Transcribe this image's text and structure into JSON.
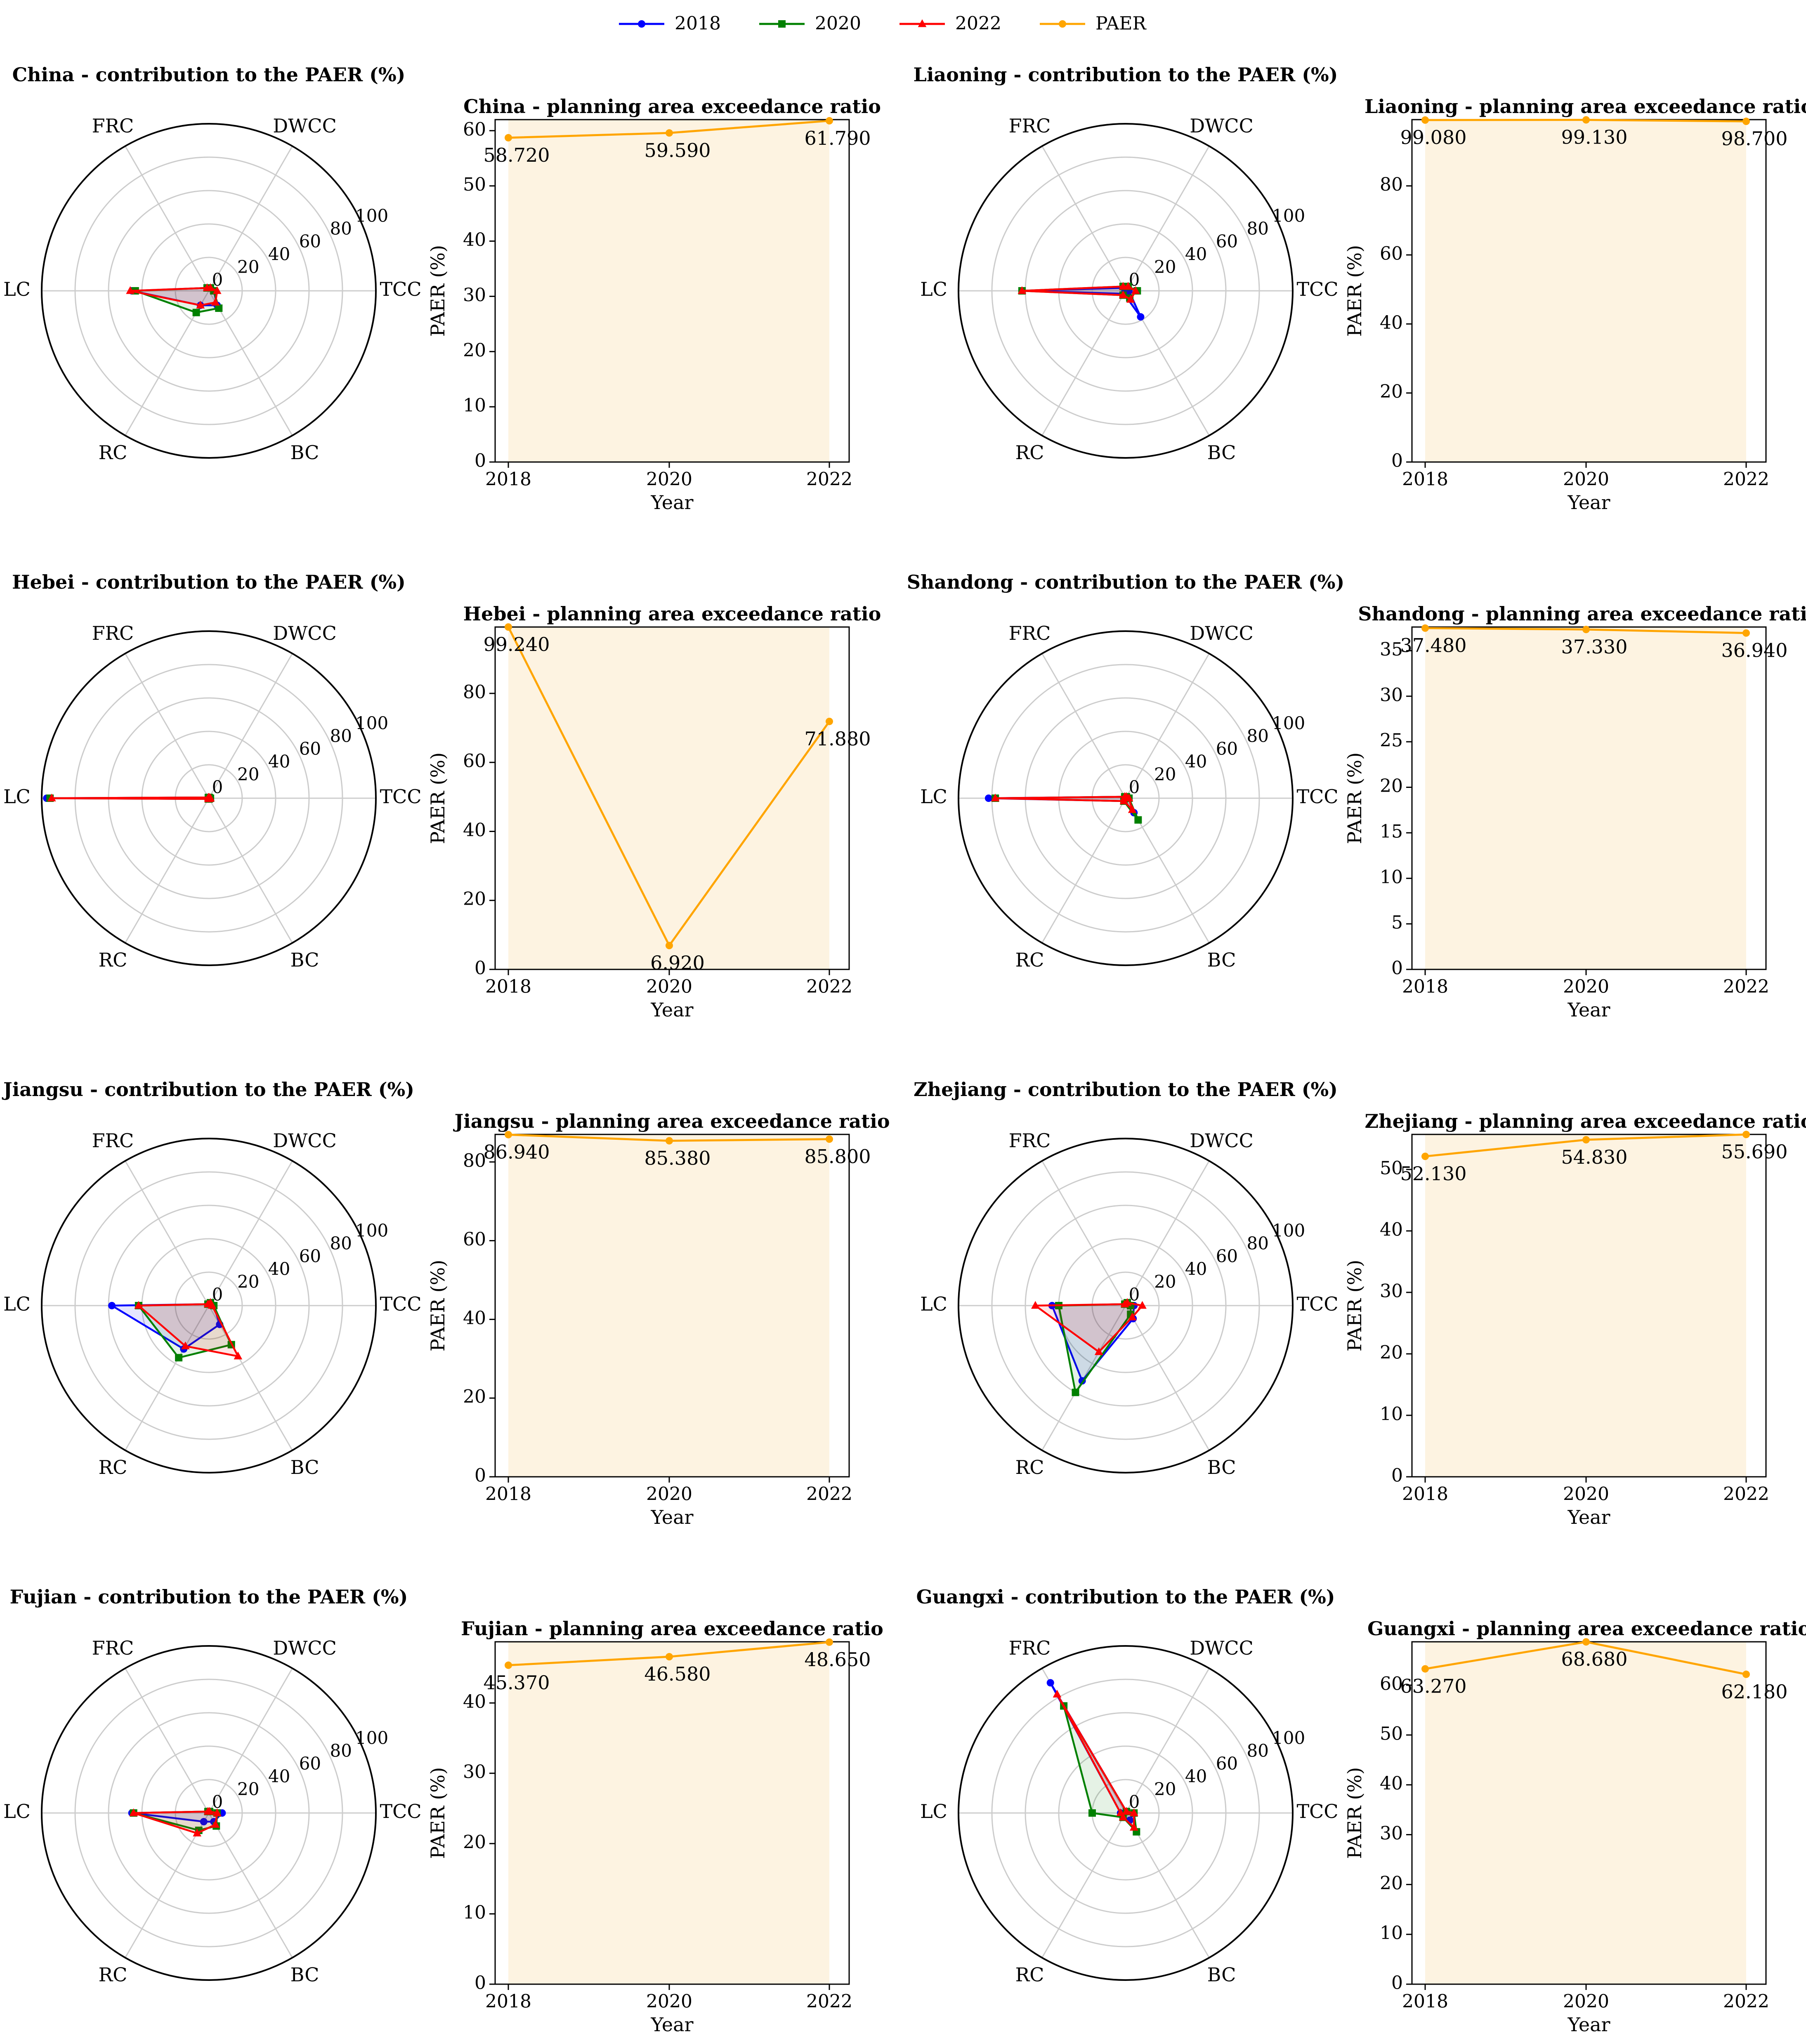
{
  "figure": {
    "legend": [
      {
        "name": "2018",
        "color": "#0000ff",
        "marker": "circle"
      },
      {
        "name": "2020",
        "color": "#008000",
        "marker": "square"
      },
      {
        "name": "2022",
        "color": "#ff0000",
        "marker": "triangle"
      },
      {
        "name": "PAER",
        "color": "#ffa500",
        "marker": "circle"
      }
    ]
  },
  "chart_data": [
    {
      "type": "radar",
      "region": "China",
      "title": "China - contribution to the PAER (%)",
      "axes": [
        "TCC",
        "DWCC",
        "FRC",
        "LC",
        "RC",
        "BC"
      ],
      "rticks": [
        0,
        20,
        40,
        60,
        80,
        100
      ],
      "rlim": [
        0,
        100
      ],
      "series": [
        {
          "name": "2018",
          "values": [
            3,
            2,
            2,
            46,
            10,
            10
          ]
        },
        {
          "name": "2020",
          "values": [
            3,
            2,
            2,
            44,
            15,
            12
          ]
        },
        {
          "name": "2022",
          "values": [
            5,
            2,
            2,
            47,
            10,
            8
          ]
        }
      ]
    },
    {
      "type": "line",
      "region": "China",
      "title": "China - planning area exceedance ratio",
      "categories": [
        "2018",
        "2020",
        "2022"
      ],
      "values": [
        58.72,
        59.59,
        61.79
      ],
      "labels": [
        "58.720",
        "59.590",
        "61.790"
      ],
      "ylim": [
        0,
        62
      ],
      "yticks": [
        0,
        10,
        20,
        30,
        40,
        50,
        60
      ],
      "xlabel": "Year",
      "ylabel": "PAER (%)"
    },
    {
      "type": "radar",
      "region": "Liaoning",
      "title": "Liaoning - contribution to the PAER (%)",
      "axes": [
        "TCC",
        "DWCC",
        "FRC",
        "LC",
        "RC",
        "BC"
      ],
      "rticks": [
        0,
        20,
        40,
        60,
        80,
        100
      ],
      "rlim": [
        0,
        100
      ],
      "series": [
        {
          "name": "2018",
          "values": [
            2,
            2,
            2,
            62,
            2,
            18
          ]
        },
        {
          "name": "2020",
          "values": [
            7,
            3,
            3,
            62,
            3,
            5
          ]
        },
        {
          "name": "2022",
          "values": [
            6,
            3,
            3,
            62,
            3,
            6
          ]
        }
      ]
    },
    {
      "type": "line",
      "region": "Liaoning",
      "title": "Liaoning - planning area exceedance ratio",
      "categories": [
        "2018",
        "2020",
        "2022"
      ],
      "values": [
        99.08,
        99.13,
        98.7
      ],
      "labels": [
        "99.080",
        "99.130",
        "98.700"
      ],
      "ylim": [
        0,
        99.2
      ],
      "yticks": [
        0,
        20,
        40,
        60,
        80
      ],
      "xlabel": "Year",
      "ylabel": "PAER (%)"
    },
    {
      "type": "radar",
      "region": "Hebei",
      "title": "Hebei - contribution to the PAER (%)",
      "axes": [
        "TCC",
        "DWCC",
        "FRC",
        "LC",
        "RC",
        "BC"
      ],
      "rticks": [
        0,
        20,
        40,
        60,
        80,
        100
      ],
      "rlim": [
        0,
        100
      ],
      "series": [
        {
          "name": "2018",
          "values": [
            1,
            0.5,
            0.5,
            97,
            0.5,
            0.5
          ]
        },
        {
          "name": "2020",
          "values": [
            1,
            0.5,
            0.5,
            95,
            0.5,
            0.5
          ]
        },
        {
          "name": "2022",
          "values": [
            1,
            0.5,
            0.5,
            94,
            0.5,
            0.5
          ]
        }
      ]
    },
    {
      "type": "line",
      "region": "Hebei",
      "title": "Hebei - planning area exceedance ratio",
      "categories": [
        "2018",
        "2020",
        "2022"
      ],
      "values": [
        99.24,
        6.92,
        71.88
      ],
      "labels": [
        "99.240",
        "6.920",
        "71.880"
      ],
      "ylim": [
        0,
        99.24
      ],
      "yticks": [
        0,
        20,
        40,
        60,
        80
      ],
      "xlabel": "Year",
      "ylabel": "PAER (%)"
    },
    {
      "type": "radar",
      "region": "Shandong",
      "title": "Shandong - contribution to the PAER (%)",
      "axes": [
        "TCC",
        "DWCC",
        "FRC",
        "LC",
        "RC",
        "BC"
      ],
      "rticks": [
        0,
        20,
        40,
        60,
        80,
        100
      ],
      "rlim": [
        0,
        100
      ],
      "series": [
        {
          "name": "2018",
          "values": [
            2,
            1,
            1,
            82,
            2,
            10
          ]
        },
        {
          "name": "2020",
          "values": [
            2,
            1,
            1,
            78,
            2,
            15
          ]
        },
        {
          "name": "2022",
          "values": [
            2,
            1,
            1,
            78,
            2,
            8
          ]
        }
      ]
    },
    {
      "type": "line",
      "region": "Shandong",
      "title": "Shandong - planning area exceedance ratio",
      "categories": [
        "2018",
        "2020",
        "2022"
      ],
      "values": [
        37.48,
        37.33,
        36.94
      ],
      "labels": [
        "37.480",
        "37.330",
        "36.940"
      ],
      "ylim": [
        0,
        37.6
      ],
      "yticks": [
        0,
        5,
        10,
        15,
        20,
        25,
        30,
        35
      ],
      "xlabel": "Year",
      "ylabel": "PAER (%)"
    },
    {
      "type": "radar",
      "region": "Jiangsu",
      "title": "Jiangsu - contribution to the PAER (%)",
      "axes": [
        "TCC",
        "DWCC",
        "FRC",
        "LC",
        "RC",
        "BC"
      ],
      "rticks": [
        0,
        20,
        40,
        60,
        80,
        100
      ],
      "rlim": [
        0,
        100
      ],
      "series": [
        {
          "name": "2018",
          "values": [
            3,
            2,
            1,
            58,
            30,
            13
          ]
        },
        {
          "name": "2020",
          "values": [
            3,
            2,
            1,
            42,
            36,
            27
          ]
        },
        {
          "name": "2022",
          "values": [
            2,
            2,
            1,
            42,
            28,
            35
          ]
        }
      ]
    },
    {
      "type": "line",
      "region": "Jiangsu",
      "title": "Jiangsu - planning area exceedance ratio",
      "categories": [
        "2018",
        "2020",
        "2022"
      ],
      "values": [
        86.94,
        85.38,
        85.8
      ],
      "labels": [
        "86.940",
        "85.380",
        "85.800"
      ],
      "ylim": [
        0,
        87
      ],
      "yticks": [
        0,
        20,
        40,
        60,
        80
      ],
      "xlabel": "Year",
      "ylabel": "PAER (%)"
    },
    {
      "type": "radar",
      "region": "Zhejiang",
      "title": "Zhejiang - contribution to the PAER (%)",
      "axes": [
        "TCC",
        "DWCC",
        "FRC",
        "LC",
        "RC",
        "BC"
      ],
      "rticks": [
        0,
        20,
        40,
        60,
        80,
        100
      ],
      "rlim": [
        0,
        100
      ],
      "series": [
        {
          "name": "2018",
          "values": [
            5,
            2,
            1,
            44,
            52,
            9
          ]
        },
        {
          "name": "2020",
          "values": [
            3,
            2,
            1,
            40,
            60,
            6
          ]
        },
        {
          "name": "2022",
          "values": [
            10,
            2,
            1,
            54,
            32,
            8
          ]
        }
      ]
    },
    {
      "type": "line",
      "region": "Zhejiang",
      "title": "Zhejiang - planning area exceedance ratio",
      "categories": [
        "2018",
        "2020",
        "2022"
      ],
      "values": [
        52.13,
        54.83,
        55.69
      ],
      "labels": [
        "52.130",
        "54.830",
        "55.690"
      ],
      "ylim": [
        0,
        55.7
      ],
      "yticks": [
        0,
        10,
        20,
        30,
        40,
        50
      ],
      "xlabel": "Year",
      "ylabel": "PAER (%)"
    },
    {
      "type": "radar",
      "region": "Fujian",
      "title": "Fujian - contribution to the PAER (%)",
      "axes": [
        "TCC",
        "DWCC",
        "FRC",
        "LC",
        "RC",
        "BC"
      ],
      "rticks": [
        0,
        20,
        40,
        60,
        80,
        100
      ],
      "rlim": [
        0,
        100
      ],
      "series": [
        {
          "name": "2018",
          "values": [
            8,
            1,
            1,
            46,
            6,
            6
          ]
        },
        {
          "name": "2020",
          "values": [
            5,
            1,
            1,
            45,
            12,
            9
          ]
        },
        {
          "name": "2022",
          "values": [
            5,
            1,
            1,
            45,
            14,
            8
          ]
        }
      ]
    },
    {
      "type": "line",
      "region": "Fujian",
      "title": "Fujian - planning area exceedance ratio",
      "categories": [
        "2018",
        "2020",
        "2022"
      ],
      "values": [
        45.37,
        46.58,
        48.65
      ],
      "labels": [
        "45.370",
        "46.580",
        "48.650"
      ],
      "ylim": [
        0,
        48.7
      ],
      "yticks": [
        0,
        10,
        20,
        30,
        40
      ],
      "xlabel": "Year",
      "ylabel": "PAER (%)"
    },
    {
      "type": "radar",
      "region": "Guangxi",
      "title": "Guangxi - contribution to the PAER (%)",
      "axes": [
        "TCC",
        "DWCC",
        "FRC",
        "LC",
        "RC",
        "BC"
      ],
      "rticks": [
        0,
        20,
        40,
        60,
        80,
        100
      ],
      "rlim": [
        0,
        100
      ],
      "series": [
        {
          "name": "2018",
          "values": [
            5,
            1,
            90,
            3,
            3,
            5
          ]
        },
        {
          "name": "2020",
          "values": [
            5,
            1,
            74,
            20,
            3,
            13
          ]
        },
        {
          "name": "2022",
          "values": [
            5,
            1,
            82,
            3,
            3,
            10
          ]
        }
      ]
    },
    {
      "type": "line",
      "region": "Guangxi",
      "title": "Guangxi - planning area exceedance ratio",
      "categories": [
        "2018",
        "2020",
        "2022"
      ],
      "values": [
        63.27,
        68.68,
        62.18
      ],
      "labels": [
        "63.270",
        "68.680",
        "62.180"
      ],
      "ylim": [
        0,
        68.7
      ],
      "yticks": [
        0,
        10,
        20,
        30,
        40,
        50,
        60
      ],
      "xlabel": "Year",
      "ylabel": "PAER (%)"
    }
  ]
}
